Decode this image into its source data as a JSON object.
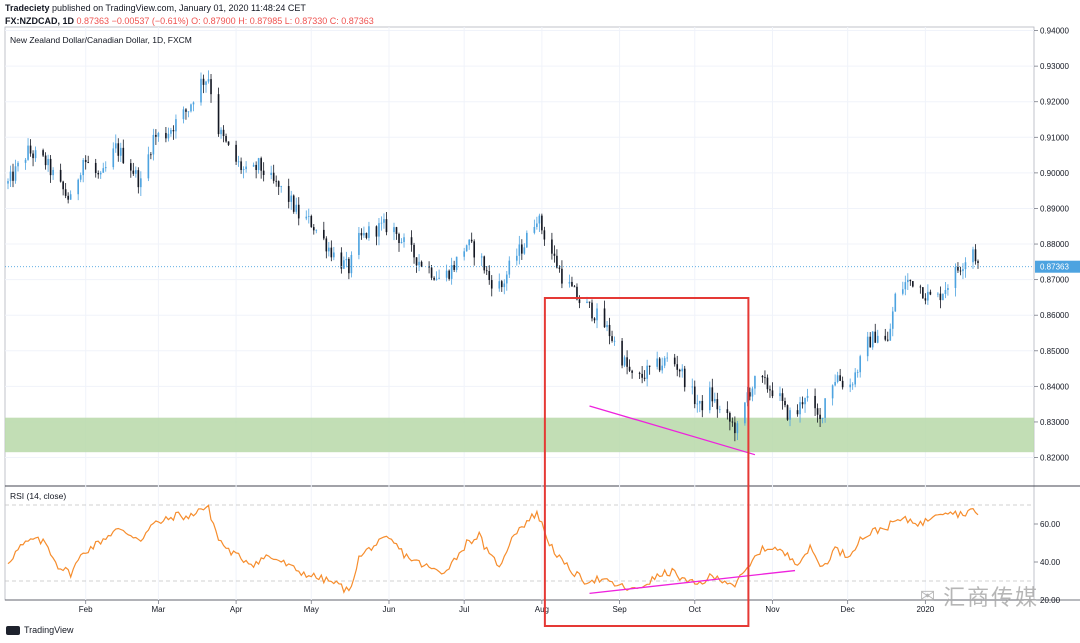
{
  "header": {
    "publisher": "Tradeciety",
    "published_text": "published on TradingView.com, January 01, 2020 11:48:24 CET",
    "symbol": "FX:NZDCAD, 1D",
    "last": "0.87363",
    "change": "−0.00537 (−0.61%)",
    "ohlc": "O: 0.87900 H: 0.87985 L: 0.87330 C: 0.87363"
  },
  "footer": {
    "logo_text": "TradingView"
  },
  "watermark": {
    "text": "汇商传媒"
  },
  "chart_data": [
    {
      "type": "candlestick",
      "title": "New Zealand Dollar/Canadian Dollar, 1D, FXCM",
      "ylim": [
        0.812,
        0.941
      ],
      "y_ticks": [
        "0.94000",
        "0.93000",
        "0.92000",
        "0.91000",
        "0.90000",
        "0.89000",
        "0.88000",
        "0.87000",
        "0.86000",
        "0.85000",
        "0.84000",
        "0.83000",
        "0.82000"
      ],
      "x_ticks": [
        "Feb",
        "Mar",
        "Apr",
        "May",
        "Jun",
        "Jul",
        "Aug",
        "Sep",
        "Oct",
        "Nov",
        "Dec",
        "2020"
      ],
      "last_price_label": "0.87363",
      "last_price": 0.87363,
      "support_zone": [
        0.8215,
        0.8312
      ],
      "trendline": {
        "start": [
          "Aug 20",
          0.8345
        ],
        "end": [
          "Oct 25",
          0.8208
        ]
      },
      "highlight_box": {
        "start": "Aug 1",
        "end": "Oct 20"
      },
      "colors": {
        "up": "#4da3e0",
        "down": "#131722",
        "trend": "#ee22dd",
        "zone": "#b7d8a8",
        "box": "#e53935"
      },
      "close_path": [
        [
          0,
          0.897
        ],
        [
          8,
          0.906
        ],
        [
          15,
          0.903
        ],
        [
          20,
          0.897
        ],
        [
          25,
          0.892
        ],
        [
          30,
          0.904
        ],
        [
          37,
          0.898
        ],
        [
          43,
          0.907
        ],
        [
          48,
          0.903
        ],
        [
          53,
          0.897
        ],
        [
          58,
          0.91
        ],
        [
          63,
          0.911
        ],
        [
          68,
          0.915
        ],
        [
          72,
          0.918
        ],
        [
          76,
          0.925
        ],
        [
          80,
          0.927
        ],
        [
          84,
          0.912
        ],
        [
          90,
          0.904
        ],
        [
          96,
          0.899
        ],
        [
          100,
          0.902
        ],
        [
          106,
          0.897
        ],
        [
          111,
          0.894
        ],
        [
          116,
          0.888
        ],
        [
          121,
          0.886
        ],
        [
          126,
          0.881
        ],
        [
          131,
          0.876
        ],
        [
          136,
          0.873
        ],
        [
          140,
          0.881
        ],
        [
          145,
          0.884
        ],
        [
          151,
          0.885
        ],
        [
          154,
          0.884
        ],
        [
          158,
          0.88
        ],
        [
          163,
          0.876
        ],
        [
          168,
          0.873
        ],
        [
          173,
          0.87
        ],
        [
          178,
          0.874
        ],
        [
          183,
          0.88
        ],
        [
          188,
          0.877
        ],
        [
          192,
          0.87
        ],
        [
          197,
          0.868
        ],
        [
          201,
          0.875
        ],
        [
          206,
          0.88
        ],
        [
          211,
          0.888
        ],
        [
          216,
          0.879
        ],
        [
          221,
          0.871
        ],
        [
          226,
          0.866
        ],
        [
          228,
          0.864
        ],
        [
          232,
          0.862
        ],
        [
          236,
          0.859
        ],
        [
          240,
          0.855
        ],
        [
          245,
          0.848
        ],
        [
          250,
          0.841
        ],
        [
          255,
          0.844
        ],
        [
          260,
          0.846
        ],
        [
          264,
          0.848
        ],
        [
          268,
          0.845
        ],
        [
          272,
          0.839
        ],
        [
          276,
          0.834
        ],
        [
          280,
          0.838
        ],
        [
          284,
          0.833
        ],
        [
          288,
          0.83
        ],
        [
          292,
          0.827
        ],
        [
          295,
          0.838
        ],
        [
          299,
          0.842
        ],
        [
          303,
          0.84
        ],
        [
          307,
          0.838
        ],
        [
          310,
          0.833
        ],
        [
          314,
          0.831
        ],
        [
          318,
          0.838
        ],
        [
          321,
          0.833
        ],
        [
          324,
          0.83
        ],
        [
          327,
          0.84
        ],
        [
          331,
          0.843
        ],
        [
          335,
          0.839
        ],
        [
          339,
          0.845
        ],
        [
          343,
          0.852
        ],
        [
          347,
          0.855
        ],
        [
          351,
          0.852
        ],
        [
          354,
          0.865
        ],
        [
          358,
          0.869
        ],
        [
          362,
          0.87
        ],
        [
          366,
          0.866
        ],
        [
          370,
          0.864
        ],
        [
          374,
          0.868
        ],
        [
          378,
          0.872
        ],
        [
          382,
          0.876
        ],
        [
          385,
          0.879
        ],
        [
          387,
          0.874
        ]
      ]
    },
    {
      "type": "line",
      "title": "RSI (14, close)",
      "ylim": [
        20,
        80
      ],
      "y_ticks": [
        "60.00",
        "40.00",
        "20.00"
      ],
      "levels": [
        70,
        30
      ],
      "trendline": {
        "start": [
          "Aug 20",
          23.5
        ],
        "end": [
          "Nov 10",
          35.5
        ]
      },
      "colors": {
        "line": "#f68d2d",
        "trend": "#ee22dd"
      },
      "path": [
        [
          0,
          40
        ],
        [
          5,
          48
        ],
        [
          10,
          52
        ],
        [
          15,
          50
        ],
        [
          20,
          38
        ],
        [
          25,
          34
        ],
        [
          30,
          45
        ],
        [
          36,
          50
        ],
        [
          43,
          57
        ],
        [
          48,
          55
        ],
        [
          53,
          52
        ],
        [
          58,
          60
        ],
        [
          63,
          62
        ],
        [
          68,
          65
        ],
        [
          72,
          63
        ],
        [
          76,
          68
        ],
        [
          80,
          68
        ],
        [
          84,
          52
        ],
        [
          88,
          46
        ],
        [
          93,
          42
        ],
        [
          98,
          39
        ],
        [
          103,
          43
        ],
        [
          108,
          41
        ],
        [
          113,
          37
        ],
        [
          118,
          34
        ],
        [
          123,
          32
        ],
        [
          128,
          30
        ],
        [
          132,
          28
        ],
        [
          136,
          24
        ],
        [
          140,
          42
        ],
        [
          145,
          48
        ],
        [
          151,
          52
        ],
        [
          154,
          50
        ],
        [
          158,
          44
        ],
        [
          163,
          40
        ],
        [
          168,
          37
        ],
        [
          173,
          34
        ],
        [
          178,
          41
        ],
        [
          183,
          50
        ],
        [
          188,
          54
        ],
        [
          192,
          43
        ],
        [
          197,
          38
        ],
        [
          201,
          54
        ],
        [
          206,
          60
        ],
        [
          211,
          66
        ],
        [
          216,
          50
        ],
        [
          221,
          40
        ],
        [
          226,
          34
        ],
        [
          230,
          30
        ],
        [
          235,
          31
        ],
        [
          240,
          29
        ],
        [
          245,
          27
        ],
        [
          250,
          25
        ],
        [
          255,
          29
        ],
        [
          260,
          33
        ],
        [
          265,
          35
        ],
        [
          270,
          30
        ],
        [
          275,
          28
        ],
        [
          280,
          32
        ],
        [
          285,
          31
        ],
        [
          290,
          28
        ],
        [
          295,
          36
        ],
        [
          300,
          46
        ],
        [
          305,
          48
        ],
        [
          310,
          44
        ],
        [
          315,
          40
        ],
        [
          320,
          47
        ],
        [
          325,
          37
        ],
        [
          330,
          47
        ],
        [
          335,
          43
        ],
        [
          340,
          52
        ],
        [
          345,
          56
        ],
        [
          350,
          58
        ],
        [
          355,
          62
        ],
        [
          360,
          62
        ],
        [
          365,
          60
        ],
        [
          370,
          66
        ],
        [
          375,
          67
        ],
        [
          380,
          65
        ],
        [
          385,
          68
        ],
        [
          387,
          63
        ]
      ]
    }
  ]
}
